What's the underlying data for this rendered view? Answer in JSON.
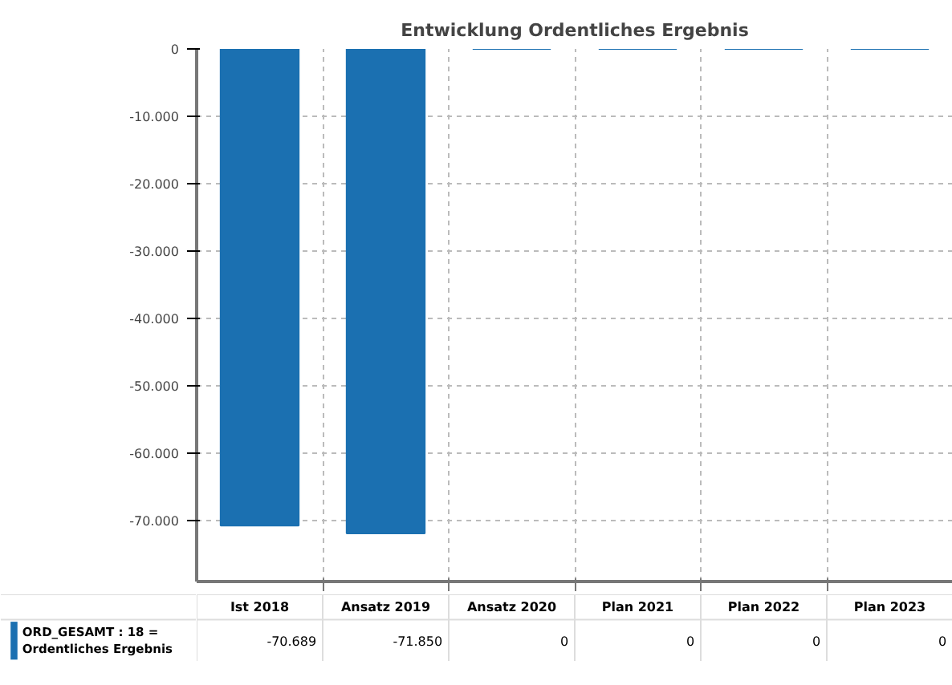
{
  "chart_data": {
    "type": "bar",
    "title": "Entwicklung Ordentliches Ergebnis",
    "categories": [
      "Ist 2018",
      "Ansatz 2019",
      "Ansatz 2020",
      "Plan 2021",
      "Plan 2022",
      "Plan 2023"
    ],
    "series": [
      {
        "name": "ORD_GESAMT : 18 = Ordentliches Ergebnis",
        "color": "#1b70b1",
        "values": [
          -70689,
          -71850,
          0,
          0,
          0,
          0
        ],
        "value_labels": [
          "-70.689",
          "-71.850",
          "0",
          "0",
          "0",
          "0"
        ]
      }
    ],
    "ylim": [
      -79000,
      0
    ],
    "yticks": [
      0,
      {
        "value": -10000,
        "label": "-10.000"
      },
      {
        "value": -20000,
        "label": "-20.000"
      },
      {
        "value": -30000,
        "label": "-30.000"
      },
      {
        "value": -40000,
        "label": "-40.000"
      },
      {
        "value": -50000,
        "label": "-50.000"
      },
      {
        "value": -60000,
        "label": "-60.000"
      },
      {
        "value": -70000,
        "label": "-70.000"
      }
    ],
    "grid": true
  }
}
